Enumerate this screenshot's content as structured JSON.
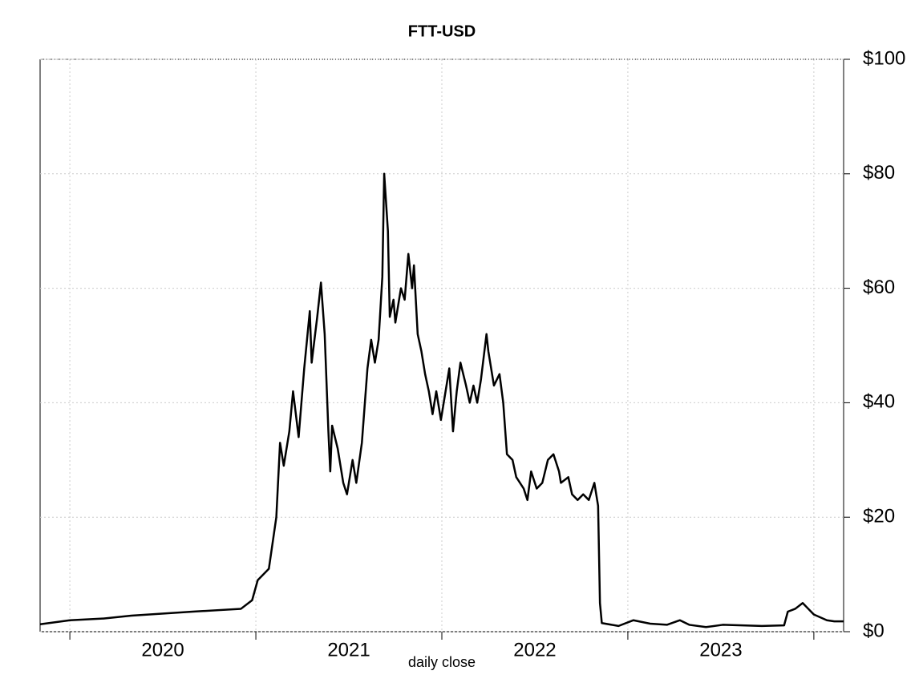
{
  "chart_data": {
    "type": "line",
    "title": "FTT-USD",
    "xlabel": "daily close",
    "x": [
      2019.84,
      2020.0,
      2020.18,
      2020.33,
      2020.66,
      2020.92,
      2020.98,
      2021.01,
      2021.07,
      2021.11,
      2021.13,
      2021.15,
      2021.18,
      2021.2,
      2021.23,
      2021.26,
      2021.29,
      2021.3,
      2021.33,
      2021.35,
      2021.37,
      2021.39,
      2021.4,
      2021.41,
      2021.44,
      2021.47,
      2021.49,
      2021.52,
      2021.54,
      2021.57,
      2021.6,
      2021.62,
      2021.64,
      2021.66,
      2021.68,
      2021.69,
      2021.71,
      2021.72,
      2021.74,
      2021.75,
      2021.78,
      2021.8,
      2021.82,
      2021.84,
      2021.85,
      2021.87,
      2021.89,
      2021.91,
      2021.93,
      2021.95,
      2021.97,
      2021.995,
      2022.02,
      2022.04,
      2022.06,
      2022.08,
      2022.1,
      2022.13,
      2022.15,
      2022.17,
      2022.19,
      2022.21,
      2022.24,
      2022.25,
      2022.28,
      2022.31,
      2022.33,
      2022.35,
      2022.38,
      2022.4,
      2022.44,
      2022.46,
      2022.48,
      2022.51,
      2022.54,
      2022.57,
      2022.6,
      2022.63,
      2022.64,
      2022.68,
      2022.7,
      2022.73,
      2022.76,
      2022.79,
      2022.82,
      2022.84,
      2022.85,
      2022.86,
      2022.95,
      2023.03,
      2023.12,
      2023.21,
      2023.28,
      2023.33,
      2023.42,
      2023.51,
      2023.72,
      2023.84,
      2023.86,
      2023.9,
      2023.94,
      2023.97,
      2024.0,
      2024.07,
      2024.11,
      2024.16
    ],
    "series": [
      {
        "color": "#000000",
        "values": [
          1.3,
          2.0,
          2.3,
          2.8,
          3.5,
          4.0,
          5.5,
          9,
          11,
          20,
          33,
          29,
          35,
          42,
          34,
          46,
          56,
          47,
          55,
          61,
          52,
          35,
          28,
          36,
          32,
          26,
          24,
          30,
          26,
          33,
          46,
          51,
          47,
          51,
          62,
          80,
          70,
          55,
          58,
          54,
          60,
          58,
          66,
          60,
          64,
          52,
          49,
          45,
          42,
          38,
          42,
          37,
          42,
          46,
          35,
          42,
          47,
          43,
          40,
          43,
          40,
          44,
          52,
          49,
          43,
          45,
          40,
          31,
          30,
          27,
          25,
          23,
          28,
          25,
          26,
          30,
          31,
          28,
          26,
          27,
          24,
          23,
          24,
          23,
          26,
          22,
          5,
          1.5,
          1.0,
          2.0,
          1.4,
          1.2,
          2.0,
          1.2,
          0.8,
          1.2,
          1.0,
          1.1,
          3.5,
          4.0,
          5.0,
          4.0,
          3.0,
          2.0,
          1.8,
          1.8
        ]
      }
    ],
    "xlim": [
      2019.84,
      2024.16
    ],
    "xticks": [
      {
        "value": 2020.5,
        "label": "2020"
      },
      {
        "value": 2021.5,
        "label": "2021"
      },
      {
        "value": 2022.5,
        "label": "2022"
      },
      {
        "value": 2023.5,
        "label": "2023"
      }
    ],
    "xgrid_lines": [
      2020,
      2021,
      2022,
      2023,
      2024
    ],
    "ylim": [
      0,
      100
    ],
    "yticks": [
      {
        "value": 0,
        "label": "$0"
      },
      {
        "value": 20,
        "label": "$20"
      },
      {
        "value": 40,
        "label": "$40"
      },
      {
        "value": 60,
        "label": "$60"
      },
      {
        "value": 80,
        "label": "$80"
      },
      {
        "value": 100,
        "label": "$100"
      }
    ],
    "grid": true
  }
}
